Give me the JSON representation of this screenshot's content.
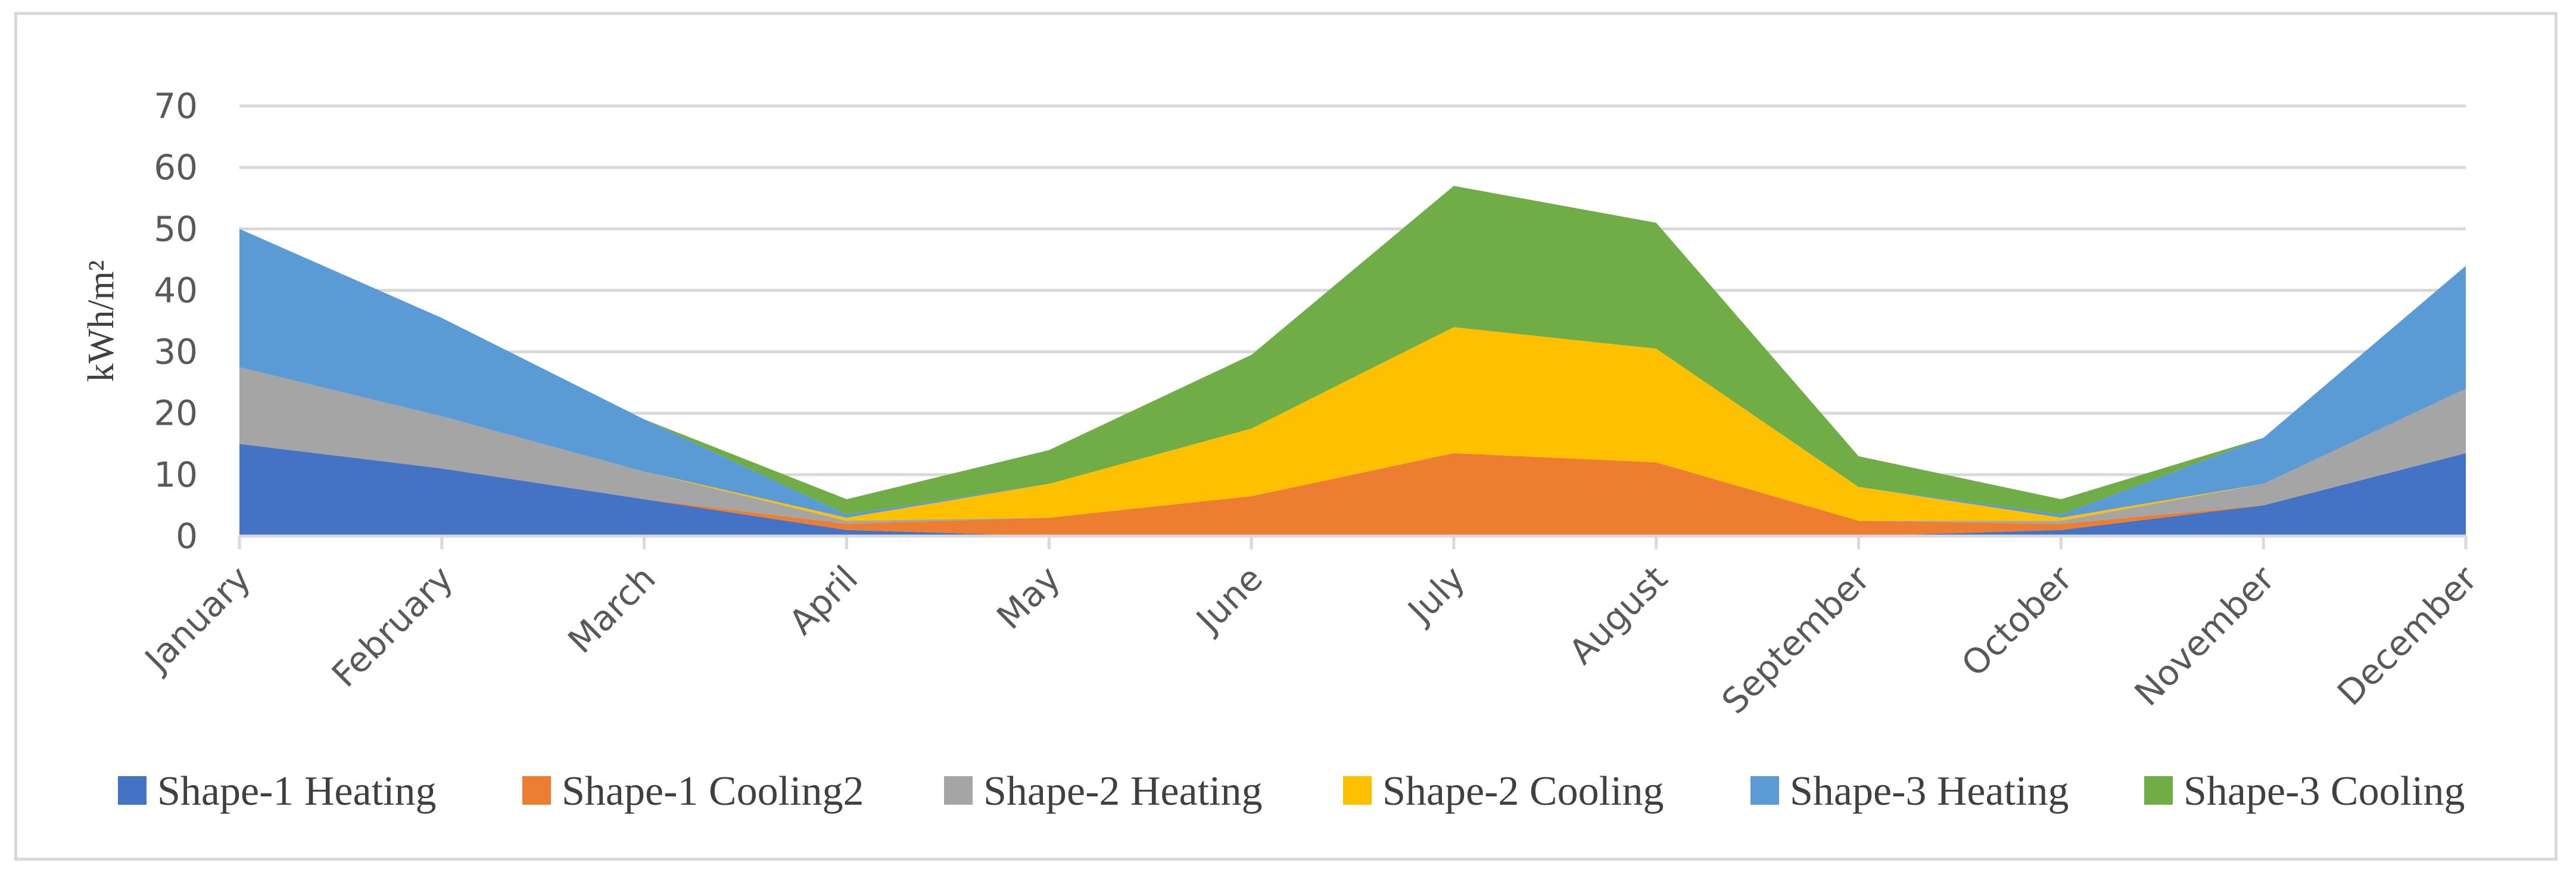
{
  "chart_data": {
    "type": "area",
    "stacked": true,
    "categories": [
      "January",
      "February",
      "March",
      "April",
      "May",
      "June",
      "July",
      "August",
      "September",
      "October",
      "November",
      "December"
    ],
    "series": [
      {
        "name": "Shape-1 Heating",
        "color": "#4472c4",
        "values": [
          15,
          11,
          6,
          1,
          0,
          0,
          0,
          0,
          0,
          1,
          5,
          13.5
        ]
      },
      {
        "name": "Shape-1 Cooling2",
        "color": "#ed7d31",
        "values": [
          0,
          0,
          0,
          1,
          3,
          6.5,
          13.5,
          12,
          2.5,
          1,
          0,
          0
        ]
      },
      {
        "name": "Shape-2 Heating",
        "color": "#a5a5a5",
        "values": [
          12.5,
          8.5,
          4.5,
          0.5,
          0,
          0,
          0,
          0,
          0,
          0.5,
          3.5,
          10.5
        ]
      },
      {
        "name": "Shape-2 Cooling",
        "color": "#ffc000",
        "values": [
          0,
          0,
          0,
          0.5,
          5.5,
          11,
          20.5,
          18.5,
          5.5,
          0.5,
          0,
          0
        ]
      },
      {
        "name": "Shape-3 Heating",
        "color": "#5b9bd5",
        "values": [
          22.5,
          16,
          8.5,
          0.5,
          0,
          0,
          0,
          0,
          0,
          0.5,
          7.5,
          20
        ]
      },
      {
        "name": "Shape-3 Cooling",
        "color": "#70ad47",
        "values": [
          0,
          0,
          0,
          2.5,
          5.5,
          12,
          23,
          20.5,
          5,
          2.5,
          0,
          0
        ]
      }
    ],
    "ylabel": "kWh/m²",
    "ylim": [
      0,
      70
    ],
    "yticks": [
      0,
      10,
      20,
      30,
      40,
      50,
      60,
      70
    ],
    "grid": true,
    "legend_position": "bottom"
  }
}
